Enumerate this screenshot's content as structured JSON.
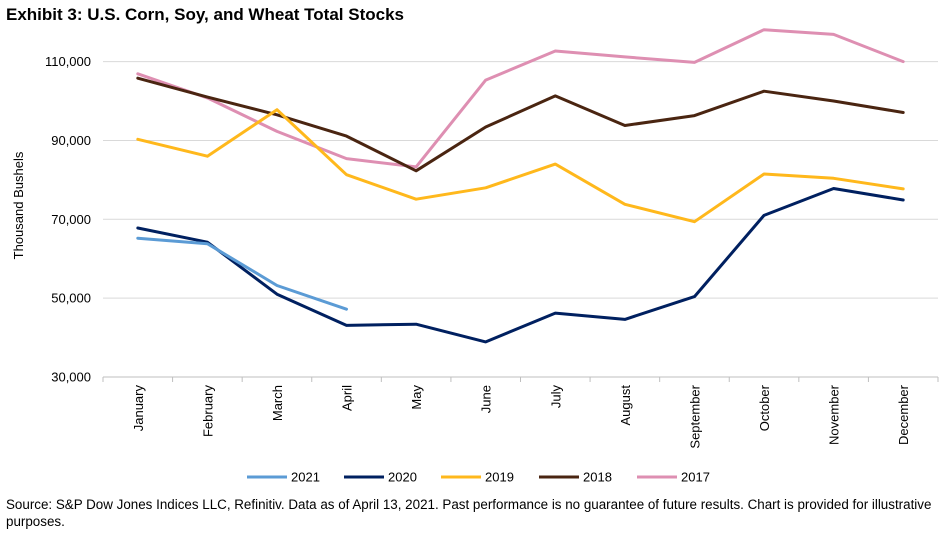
{
  "chart_data": {
    "type": "line",
    "title": "Exhibit 3: U.S. Corn, Soy, and Wheat Total Stocks",
    "xlabel": "",
    "ylabel": "Thousand Bushels",
    "categories": [
      "January",
      "February",
      "March",
      "April",
      "May",
      "June",
      "July",
      "August",
      "September",
      "October",
      "November",
      "December"
    ],
    "ylim": [
      30000,
      117000
    ],
    "yticks": [
      30000,
      50000,
      70000,
      90000,
      110000
    ],
    "ytick_labels": [
      "30,000",
      "50,000",
      "70,000",
      "90,000",
      "110,000"
    ],
    "grid": "horizontal",
    "legend_position": "bottom",
    "series": [
      {
        "name": "2021",
        "color": "#5b9bd5",
        "values": [
          65200,
          63800,
          53200,
          47200,
          null,
          null,
          null,
          null,
          null,
          null,
          null,
          null
        ]
      },
      {
        "name": "2020",
        "color": "#002060",
        "values": [
          67800,
          64200,
          51000,
          43100,
          43400,
          38900,
          46200,
          44600,
          50400,
          71000,
          77800,
          74900
        ]
      },
      {
        "name": "2019",
        "color": "#ffb81c",
        "values": [
          90300,
          86000,
          97800,
          81300,
          75100,
          78000,
          84000,
          73800,
          69400,
          81500,
          80400,
          77700
        ]
      },
      {
        "name": "2018",
        "color": "#4a2511",
        "values": [
          105800,
          101000,
          96500,
          91100,
          82300,
          93400,
          101300,
          93800,
          96300,
          102500,
          100000,
          97100
        ]
      },
      {
        "name": "2017",
        "color": "#de8fb2",
        "values": [
          106900,
          100800,
          92300,
          85400,
          83300,
          105300,
          112700,
          111200,
          109800,
          118100,
          116900,
          110000
        ]
      }
    ]
  },
  "source_note": "Source: S&P Dow Jones Indices LLC, Refinitiv. Data as of April 13, 2021. Past performance is no guarantee of future results. Chart is provided for illustrative purposes."
}
